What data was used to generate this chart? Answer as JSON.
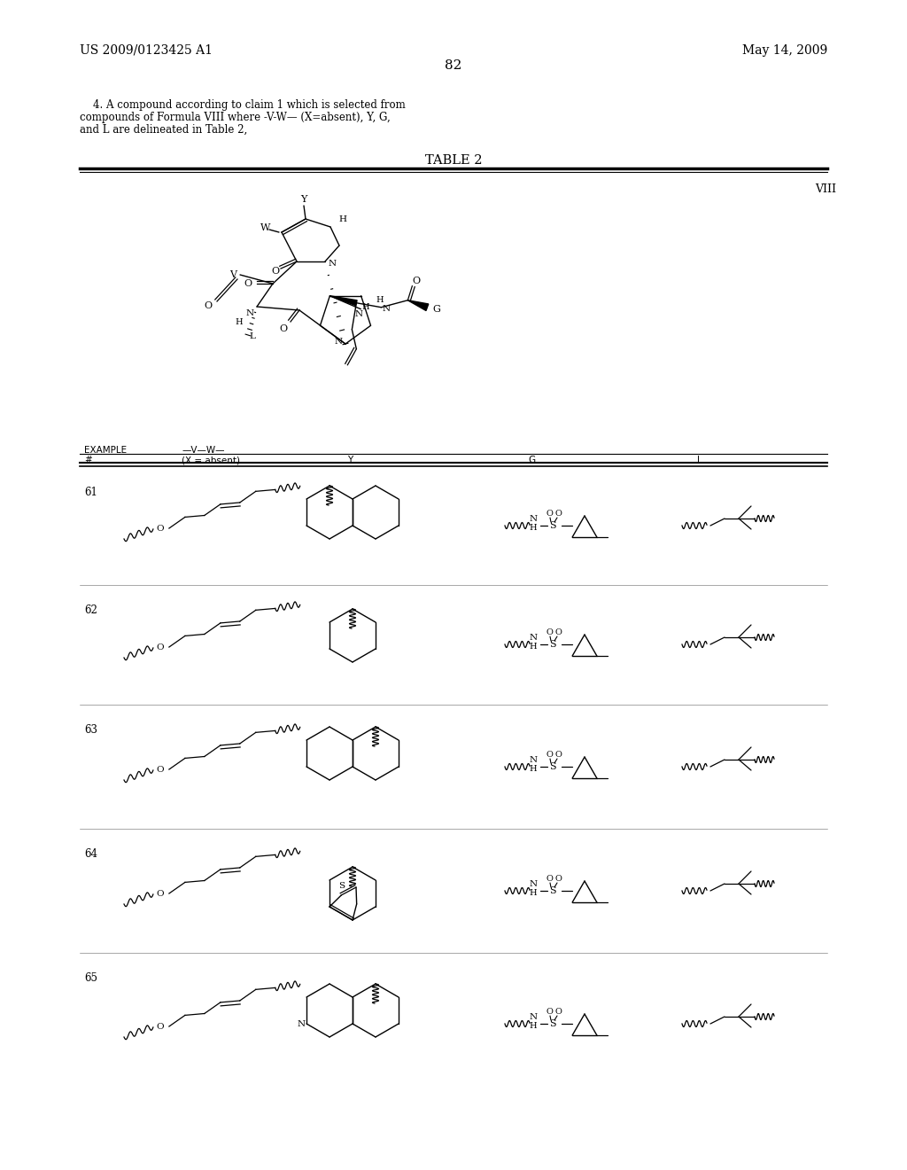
{
  "page_number": "82",
  "patent_left": "US 2009/0123425 A1",
  "patent_right": "May 14, 2009",
  "claim_text_line1": "    4. A compound according to claim 1 which is selected from",
  "claim_text_line2": "compounds of Formula VIII where -V-W— (X=absent), Y, G,",
  "claim_text_line3": "and L are delineated in Table 2,",
  "table_title": "TABLE 2",
  "formula_label": "VIII",
  "examples": [
    61,
    62,
    63,
    64,
    65
  ],
  "background_color": "#ffffff",
  "text_color": "#000000"
}
